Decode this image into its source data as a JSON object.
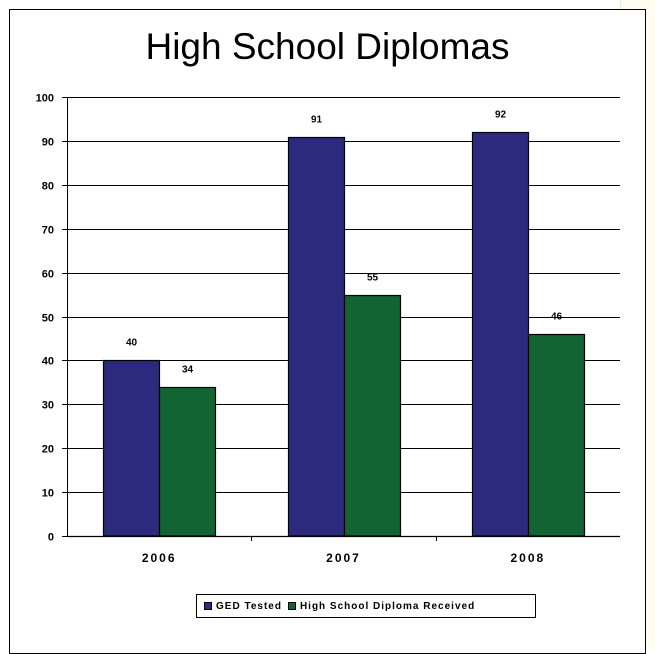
{
  "chart_data": {
    "type": "bar",
    "title": "High School Diplomas",
    "categories": [
      "2006",
      "2007",
      "2008"
    ],
    "series": [
      {
        "name": "GED Tested",
        "values": [
          40,
          91,
          92
        ],
        "color": "#2b2a7e"
      },
      {
        "name": "High School Diploma Received",
        "values": [
          34,
          55,
          46
        ],
        "color": "#136433"
      }
    ],
    "ylim": [
      0,
      100
    ],
    "yticks": [
      0,
      10,
      20,
      30,
      40,
      50,
      60,
      70,
      80,
      90,
      100
    ],
    "grid": true,
    "legend_position": "bottom"
  }
}
